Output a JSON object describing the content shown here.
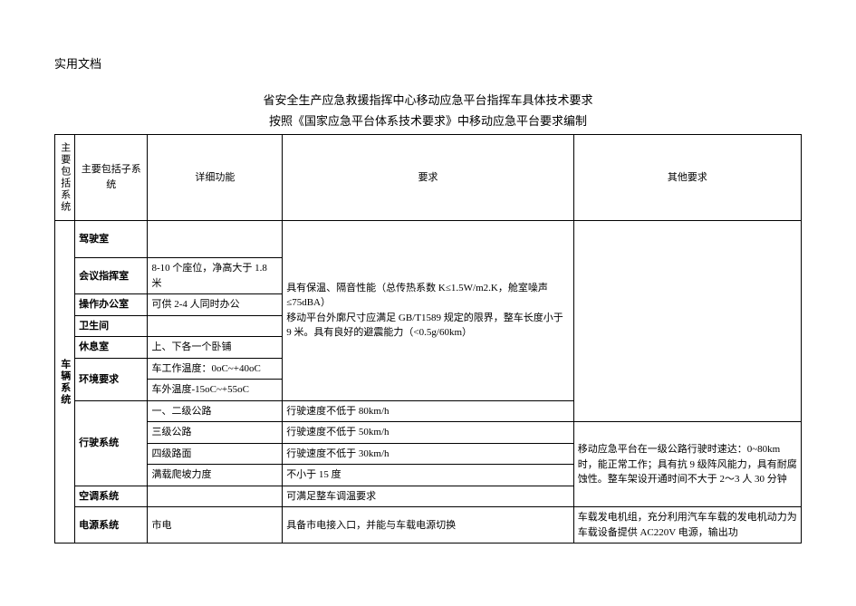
{
  "page": {
    "doc_label": "实用文档",
    "title_line1": "省安全生产应急救援指挥中心移动应急平台指挥车具体技术要求",
    "title_line2": "按照《国家应急平台体系技术要求》中移动应急平台要求编制"
  },
  "header": {
    "col1": "主要包括系统",
    "col2": "主要包括子系统",
    "col3": "详细功能",
    "col4": "要求",
    "col5": "其他要求"
  },
  "main_sys": "车辆系统",
  "rows": {
    "r1": {
      "sub": "驾驶室",
      "detail": ""
    },
    "r2": {
      "sub": "会议指挥室",
      "detail": "8-10 个座位，净高大于 1.8 米"
    },
    "r3": {
      "sub": "操作办公室",
      "detail": "可供 2-4 人同时办公"
    },
    "r4": {
      "sub": "卫生间",
      "detail": ""
    },
    "r5": {
      "sub": "休息室",
      "detail": "上、下各一个卧铺"
    },
    "r6": {
      "sub": "环境要求",
      "detail_a": "车工作温度：0oC~+40oC",
      "detail_b": "车外温度-15oC~+55oC"
    },
    "r7": {
      "sub": "行驶系统",
      "road1": "一、二级公路",
      "req1": "行驶速度不低于 80km/h",
      "road2": "三级公路",
      "req2": "行驶速度不低于 50km/h",
      "road3": "四级路面",
      "req3": "行驶速度不低于 30km/h",
      "road4": "满载爬坡力度",
      "req4": "不小于 15 度"
    },
    "r8": {
      "sub": "空调系统",
      "detail": "",
      "req": "可满足整车调温要求"
    },
    "r9": {
      "sub": "电源系统",
      "detail": "市电",
      "req": "具备市电接入口，并能与车载电源切换"
    }
  },
  "merged_req_top": "具有保温、隔音性能（总传热系数 K≤1.5W/m2.K，舱室噪声≤75dBA）\n移动平台外廓尺寸应满足 GB/T1589 规定的限界，整车长度小于 9 米。具有良好的避震能力（<0.5g/60km）",
  "other_req_drive": "移动应急平台在一级公路行驶时速达：0~80km 时，能正常工作；具有抗 9 级阵风能力，具有耐腐蚀性。整车架设开通时间不大于 2～3 人 30 分钟",
  "other_req_power": "车载发电机组，充分利用汽车车载的发电机动力为车载设备提供 AC220V 电源，输出功"
}
